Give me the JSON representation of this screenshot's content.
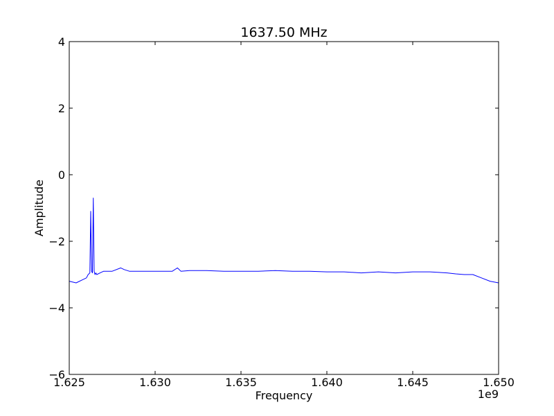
{
  "chart_data": {
    "type": "line",
    "title": "1637.50 MHz",
    "xlabel": "Frequency",
    "ylabel": "Amplitude",
    "x_offset_label": "1e9",
    "xlim": [
      1.625,
      1.65
    ],
    "ylim": [
      -6,
      4
    ],
    "x_ticks": [
      1.625,
      1.63,
      1.635,
      1.64,
      1.645,
      1.65
    ],
    "x_tick_labels": [
      "1.625",
      "1.630",
      "1.635",
      "1.640",
      "1.645",
      "1.650"
    ],
    "y_ticks": [
      -6,
      -4,
      -2,
      0,
      2,
      4
    ],
    "y_tick_labels": [
      "−6",
      "−4",
      "−2",
      "0",
      "2",
      "4"
    ],
    "grid": false,
    "legend": "none",
    "series": [
      {
        "color": "#0000ff",
        "x": [
          1.625,
          1.6254,
          1.6258,
          1.626,
          1.6261,
          1.6262,
          1.62625,
          1.6263,
          1.62635,
          1.6264,
          1.62645,
          1.6265,
          1.62655,
          1.6266,
          1.6268,
          1.627,
          1.6275,
          1.628,
          1.6282,
          1.6285,
          1.629,
          1.6295,
          1.63,
          1.6305,
          1.631,
          1.6313,
          1.6315,
          1.632,
          1.633,
          1.634,
          1.635,
          1.636,
          1.637,
          1.638,
          1.639,
          1.64,
          1.641,
          1.642,
          1.643,
          1.644,
          1.645,
          1.646,
          1.647,
          1.6475,
          1.648,
          1.6485,
          1.649,
          1.6495,
          1.65
        ],
        "y": [
          -3.2,
          -3.25,
          -3.15,
          -3.1,
          -3.0,
          -2.95,
          -1.1,
          -2.9,
          -2.95,
          -0.7,
          -2.9,
          -3.0,
          -2.95,
          -3.0,
          -2.95,
          -2.9,
          -2.9,
          -2.8,
          -2.85,
          -2.9,
          -2.9,
          -2.9,
          -2.9,
          -2.9,
          -2.9,
          -2.8,
          -2.9,
          -2.88,
          -2.88,
          -2.9,
          -2.9,
          -2.9,
          -2.88,
          -2.9,
          -2.9,
          -2.92,
          -2.92,
          -2.95,
          -2.92,
          -2.95,
          -2.92,
          -2.92,
          -2.95,
          -2.98,
          -3.0,
          -3.0,
          -3.1,
          -3.2,
          -3.25
        ]
      }
    ]
  }
}
